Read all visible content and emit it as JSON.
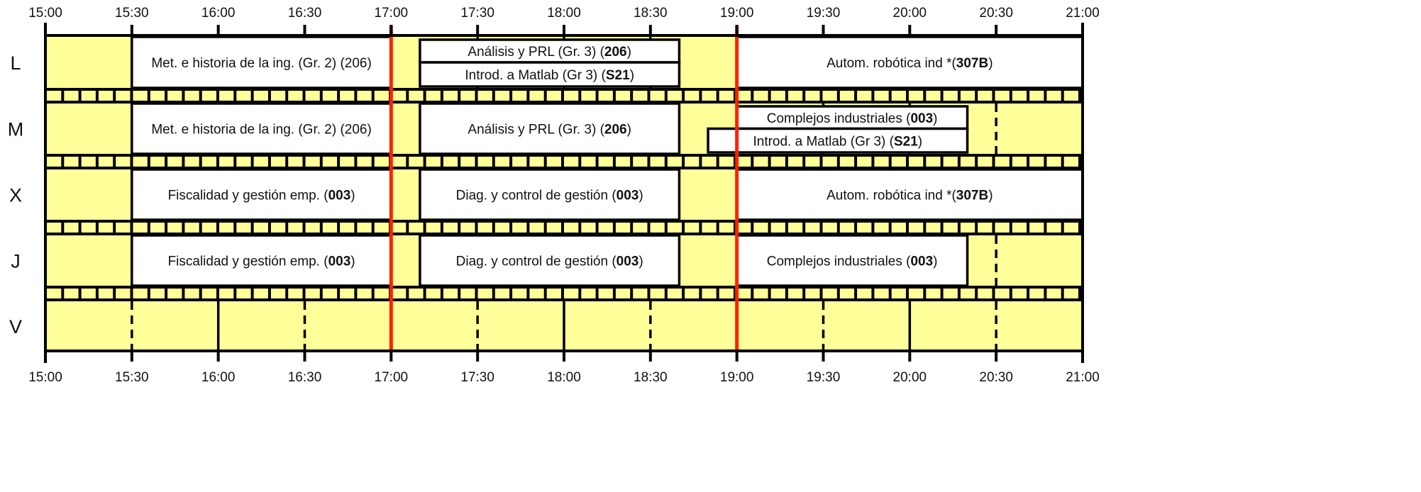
{
  "time_labels": [
    "15:00",
    "15:30",
    "16:00",
    "16:30",
    "17:00",
    "17:30",
    "18:00",
    "18:30",
    "19:00",
    "19:30",
    "20:00",
    "20:30",
    "21:00"
  ],
  "days": [
    "L",
    "M",
    "X",
    "J",
    "V"
  ],
  "colors": {
    "background": "#ffff99",
    "class_block": "#ffffff",
    "grid": "#000000",
    "highlight_line": "#ff2200"
  },
  "highlight_times": [
    "17:00",
    "19:00"
  ],
  "classes": [
    {
      "day": "L",
      "start": "15:30",
      "end": "17:00",
      "lane": "full",
      "text": "Met. e historia de la ing. (Gr. 2) (206)",
      "room": ""
    },
    {
      "day": "L",
      "start": "17:10",
      "end": "18:40",
      "lane": "top",
      "text": "Análisis y PRL (Gr. 3) (",
      "room": "206",
      "suffix": ")"
    },
    {
      "day": "L",
      "start": "17:10",
      "end": "18:40",
      "lane": "bottom",
      "text": "Introd. a Matlab  (Gr 3) (",
      "room": "S21",
      "suffix": ")"
    },
    {
      "day": "L",
      "start": "19:00",
      "end": "21:00",
      "lane": "full",
      "text": "Autom. robótica ind *(",
      "room": "307B",
      "suffix": ")"
    },
    {
      "day": "M",
      "start": "15:30",
      "end": "17:00",
      "lane": "full",
      "text": "Met. e historia de la ing. (Gr. 2) (206)",
      "room": ""
    },
    {
      "day": "M",
      "start": "17:10",
      "end": "18:40",
      "lane": "full",
      "text": "Análisis y PRL (Gr. 3) (",
      "room": "206",
      "suffix": ")"
    },
    {
      "day": "M",
      "start": "19:00",
      "end": "20:20",
      "lane": "top",
      "text": "Complejos industriales (",
      "room": "003",
      "suffix": ")"
    },
    {
      "day": "M",
      "start": "18:50",
      "end": "20:20",
      "lane": "bottom",
      "text": "Introd. a Matlab  (Gr 3) (",
      "room": "S21",
      "suffix": ")"
    },
    {
      "day": "X",
      "start": "15:30",
      "end": "17:00",
      "lane": "full",
      "text": "Fiscalidad y gestión emp. (",
      "room": "003",
      "suffix": ")"
    },
    {
      "day": "X",
      "start": "17:10",
      "end": "18:40",
      "lane": "full",
      "text": "Diag. y control de gestión (",
      "room": "003",
      "suffix": ")"
    },
    {
      "day": "X",
      "start": "19:00",
      "end": "21:00",
      "lane": "full",
      "text": "Autom. robótica ind *(",
      "room": "307B",
      "suffix": ")"
    },
    {
      "day": "J",
      "start": "15:30",
      "end": "17:00",
      "lane": "full",
      "text": "Fiscalidad y gestión emp. (",
      "room": "003",
      "suffix": ")"
    },
    {
      "day": "J",
      "start": "17:10",
      "end": "18:40",
      "lane": "full",
      "text": "Diag. y control de gestión (",
      "room": "003",
      "suffix": ")"
    },
    {
      "day": "J",
      "start": "19:00",
      "end": "20:20",
      "lane": "full",
      "text": "Complejos industriales (",
      "room": "003",
      "suffix": ")"
    }
  ]
}
